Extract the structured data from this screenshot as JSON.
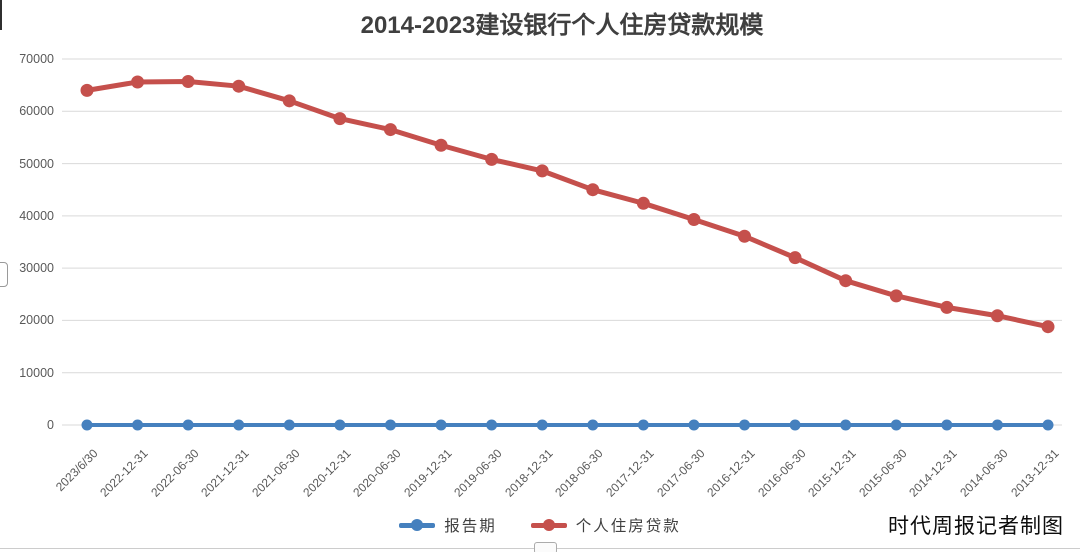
{
  "page": {
    "credit": "时代周报记者制图"
  },
  "chart_data": {
    "type": "line",
    "title": "2014-2023建设银行个人住房贷款规模",
    "xlabel": "",
    "ylabel": "",
    "ylim": [
      0,
      70000
    ],
    "y_ticks": [
      0,
      10000,
      20000,
      30000,
      40000,
      50000,
      60000,
      70000
    ],
    "grid": "horizontal",
    "gridline_color": "#d9d9d9",
    "legend_position": "bottom",
    "categories": [
      "2023/6/30",
      "2022-12-31",
      "2022-06-30",
      "2021-12-31",
      "2021-06-30",
      "2020-12-31",
      "2020-06-30",
      "2019-12-31",
      "2019-06-30",
      "2018-12-31",
      "2018-06-30",
      "2017-12-31",
      "2017-06-30",
      "2016-12-31",
      "2016-06-30",
      "2015-12-31",
      "2015-06-30",
      "2014-12-31",
      "2014-06-30",
      "2013-12-31"
    ],
    "series": [
      {
        "name": "报告期",
        "color": "#4580be",
        "marker_radius": 5.5,
        "line_width": 4,
        "values": [
          0,
          0,
          0,
          0,
          0,
          0,
          0,
          0,
          0,
          0,
          0,
          0,
          0,
          0,
          0,
          0,
          0,
          0,
          0,
          0
        ]
      },
      {
        "name": "个人住房贷款",
        "color": "#c5504c",
        "marker_radius": 6.5,
        "line_width": 5,
        "values": [
          64000,
          65600,
          65700,
          64800,
          62000,
          58600,
          56500,
          53500,
          50800,
          48600,
          45000,
          42400,
          39300,
          36100,
          32000,
          27600,
          24700,
          22500,
          20900,
          18800
        ]
      }
    ]
  }
}
